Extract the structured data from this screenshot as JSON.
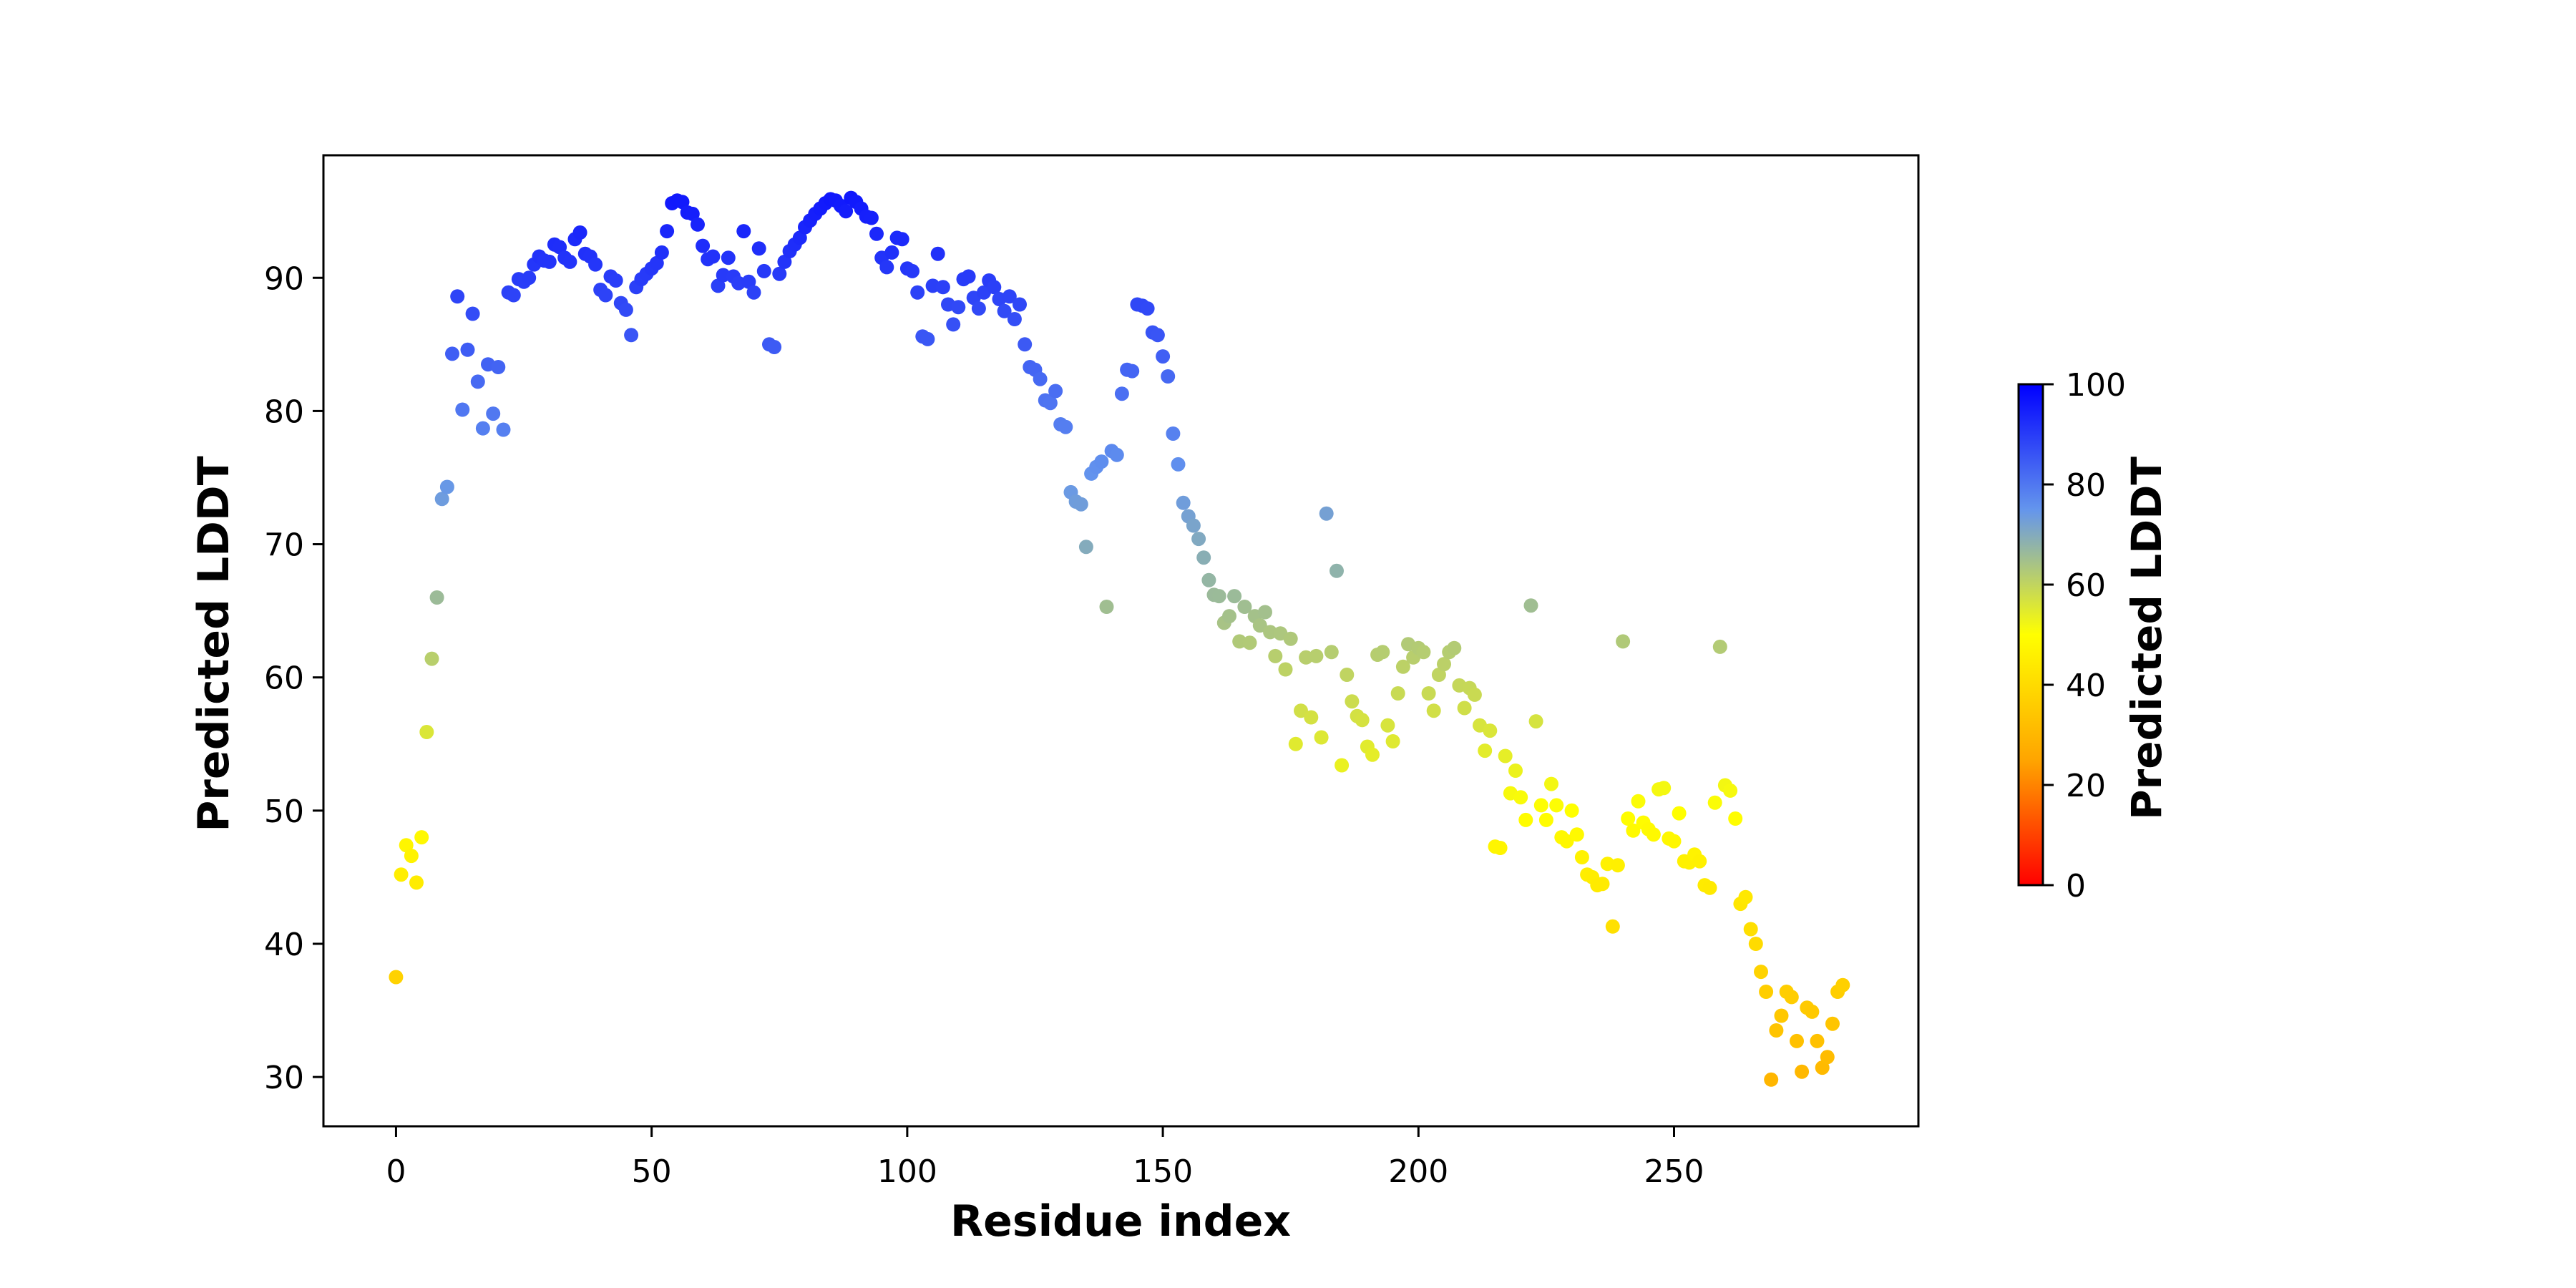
{
  "chart_data": {
    "type": "scatter",
    "title": "",
    "xlabel": "Residue index",
    "ylabel": "Predicted LDDT",
    "x_ticks": [
      0,
      50,
      100,
      150,
      200,
      250
    ],
    "y_ticks": [
      30,
      40,
      50,
      60,
      70,
      80,
      90
    ],
    "xlim": [
      -14.2,
      297.8
    ],
    "ylim": [
      26.3,
      99.2
    ],
    "grid": false,
    "legend": "none",
    "marker": {
      "shape": "circle",
      "radius_px": 10
    },
    "series": [
      {
        "name": "per-residue predicted LDDT",
        "x_start": 0,
        "x_step": 1,
        "values": [
          37.5,
          45.2,
          47.4,
          46.6,
          44.6,
          48.0,
          55.9,
          61.4,
          66.0,
          73.4,
          74.3,
          84.3,
          88.6,
          80.1,
          84.6,
          87.3,
          82.2,
          78.7,
          83.5,
          79.8,
          83.3,
          78.6,
          88.9,
          88.7,
          89.9,
          89.7,
          90.0,
          91.0,
          91.6,
          91.3,
          91.2,
          92.5,
          92.3,
          91.5,
          91.2,
          92.9,
          93.4,
          91.8,
          91.6,
          91.0,
          89.1,
          88.7,
          90.1,
          89.8,
          88.1,
          87.6,
          85.7,
          89.3,
          89.9,
          90.3,
          90.7,
          91.1,
          91.9,
          93.5,
          95.6,
          95.8,
          95.7,
          94.9,
          94.8,
          94.0,
          92.4,
          91.4,
          91.6,
          89.4,
          90.2,
          91.5,
          90.1,
          89.6,
          93.5,
          89.7,
          88.9,
          92.2,
          90.5,
          85.0,
          84.8,
          90.3,
          91.2,
          92.0,
          92.5,
          93.0,
          93.8,
          94.3,
          94.8,
          95.2,
          95.6,
          95.9,
          95.8,
          95.4,
          95.0,
          96.0,
          95.7,
          95.2,
          94.6,
          94.5,
          93.3,
          91.5,
          90.8,
          91.9,
          93.0,
          92.9,
          90.7,
          90.5,
          88.9,
          85.6,
          85.4,
          89.4,
          91.8,
          89.3,
          88.0,
          86.5,
          87.8,
          89.9,
          90.1,
          88.5,
          87.7,
          88.9,
          89.8,
          89.3,
          88.4,
          87.5,
          88.6,
          86.9,
          88.0,
          85.0,
          83.3,
          83.1,
          82.4,
          80.8,
          80.6,
          81.5,
          79.0,
          78.8,
          73.9,
          73.2,
          73.0,
          69.8,
          75.3,
          75.8,
          76.2,
          65.3,
          77.0,
          76.7,
          81.3,
          83.1,
          83.0,
          88.0,
          87.9,
          87.7,
          85.9,
          85.7,
          84.1,
          82.6,
          78.3,
          76.0,
          73.1,
          72.1,
          71.4,
          70.4,
          69.0,
          67.3,
          66.2,
          66.1,
          64.1,
          64.6,
          66.1,
          62.7,
          65.3,
          62.6,
          64.6,
          63.9,
          64.9,
          63.4,
          61.6,
          63.3,
          60.6,
          62.9,
          55.0,
          57.5,
          61.5,
          57.0,
          61.6,
          55.5,
          72.3,
          61.9,
          68.0,
          53.4,
          60.2,
          58.2,
          57.1,
          56.8,
          54.8,
          54.2,
          61.7,
          61.9,
          56.4,
          55.2,
          58.8,
          60.8,
          62.5,
          61.5,
          62.2,
          61.9,
          58.8,
          57.5,
          60.2,
          61.0,
          61.9,
          62.2,
          59.4,
          57.7,
          59.2,
          58.7,
          56.4,
          54.5,
          56.0,
          47.3,
          47.2,
          54.1,
          51.3,
          53.0,
          51.0,
          49.3,
          65.4,
          56.7,
          50.4,
          49.3,
          52.0,
          50.4,
          48.0,
          47.7,
          50.0,
          48.2,
          46.5,
          45.2,
          45.0,
          44.4,
          44.5,
          46.0,
          41.3,
          45.9,
          62.7,
          49.4,
          48.5,
          50.7,
          49.1,
          48.6,
          48.2,
          51.6,
          51.7,
          47.9,
          47.7,
          49.8,
          46.2,
          46.1,
          46.7,
          46.2,
          44.4,
          44.2,
          50.6,
          62.3,
          51.9,
          51.5,
          49.4,
          43.0,
          43.5,
          41.1,
          40.0,
          37.9,
          36.4,
          29.8,
          33.5,
          34.6,
          36.4,
          36.0,
          32.7,
          30.4,
          35.2,
          34.9,
          32.7,
          30.7,
          31.5,
          34.0,
          36.4,
          36.9
        ]
      }
    ],
    "colormap": {
      "name": "alphafold-plddt (red-orange-yellow-cornflowerblue-blue)",
      "stops": [
        {
          "t": 0.0,
          "hex": "#ff0000",
          "rgb": [
            255,
            0,
            0
          ]
        },
        {
          "t": 0.25,
          "hex": "#ffa500",
          "rgb": [
            255,
            165,
            0
          ]
        },
        {
          "t": 0.5,
          "hex": "#ffff00",
          "rgb": [
            255,
            255,
            0
          ]
        },
        {
          "t": 0.75,
          "hex": "#6495ed",
          "rgb": [
            100,
            149,
            237
          ]
        },
        {
          "t": 1.0,
          "hex": "#0000ff",
          "rgb": [
            0,
            0,
            255
          ]
        }
      ],
      "value_min": 0,
      "value_max": 100
    },
    "colorbar": {
      "label": "Predicted LDDT",
      "ticks": [
        0,
        20,
        40,
        60,
        80,
        100
      ],
      "position": "right"
    },
    "axis_color": "#000000",
    "background_color": "#ffffff"
  },
  "layout_note": "scatter plot of per-residue predicted LDDT, residues 0-283"
}
